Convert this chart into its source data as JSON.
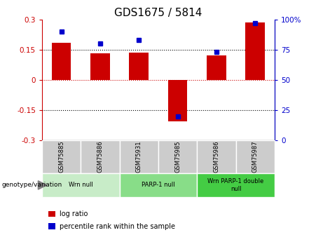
{
  "title": "GDS1675 / 5814",
  "samples": [
    "GSM75885",
    "GSM75886",
    "GSM75931",
    "GSM75985",
    "GSM75986",
    "GSM75987"
  ],
  "log_ratio": [
    0.185,
    0.13,
    0.135,
    -0.205,
    0.12,
    0.285
  ],
  "percentile_rank": [
    90,
    80,
    83,
    20,
    73,
    97
  ],
  "bar_color": "#cc0000",
  "dot_color": "#0000cc",
  "ylim_left": [
    -0.3,
    0.3
  ],
  "ylim_right": [
    0,
    100
  ],
  "yticks_left": [
    -0.3,
    -0.15,
    0,
    0.15,
    0.3
  ],
  "yticks_right": [
    0,
    25,
    50,
    75,
    100
  ],
  "hlines": [
    -0.15,
    0.0,
    0.15
  ],
  "hline_colors": [
    "black",
    "#cc0000",
    "black"
  ],
  "hline_styles": [
    "dotted",
    "dotted",
    "dotted"
  ],
  "groups": [
    {
      "label": "Wrn null",
      "start": 0,
      "end": 2,
      "color": "#c8ecc8"
    },
    {
      "label": "PARP-1 null",
      "start": 2,
      "end": 4,
      "color": "#88dd88"
    },
    {
      "label": "Wrn PARP-1 double\nnull",
      "start": 4,
      "end": 6,
      "color": "#44cc44"
    }
  ],
  "genotype_label": "genotype/variation",
  "legend_items": [
    {
      "label": "log ratio",
      "color": "#cc0000"
    },
    {
      "label": "percentile rank within the sample",
      "color": "#0000cc"
    }
  ],
  "bar_width": 0.5,
  "background_color": "#ffffff",
  "plot_bg_color": "#ffffff",
  "tick_label_color_left": "#cc0000",
  "tick_label_color_right": "#0000cc",
  "sample_box_color": "#cccccc",
  "title_fontsize": 11,
  "tick_fontsize": 7.5
}
